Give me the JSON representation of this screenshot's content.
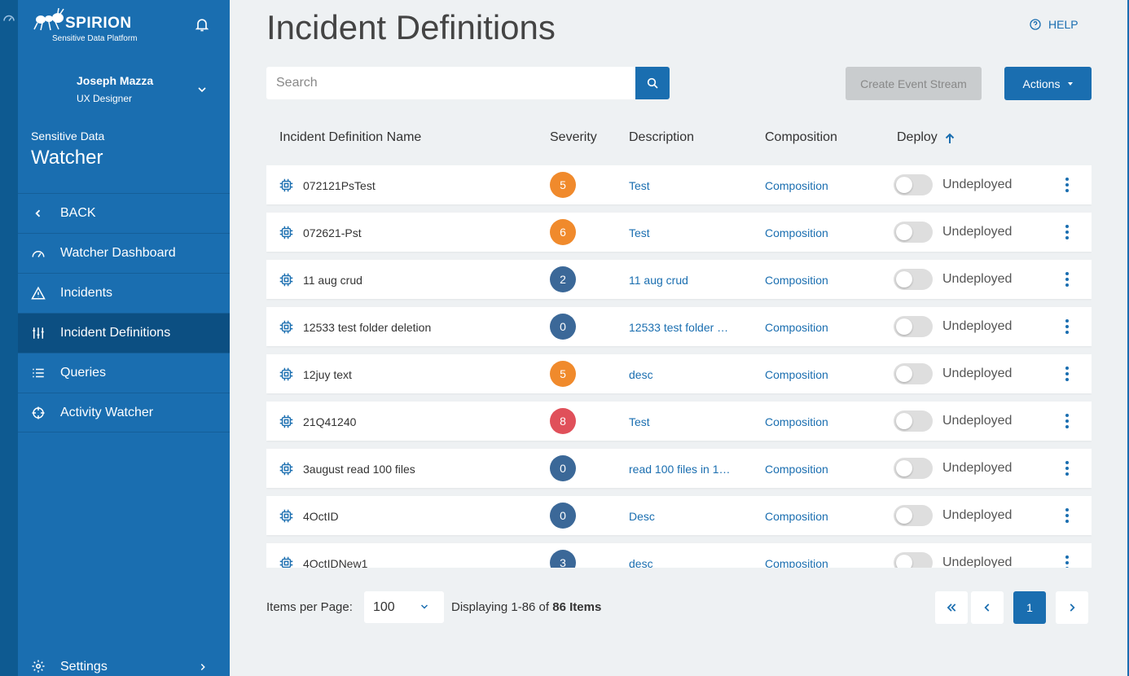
{
  "app": {
    "logo_text": "SPIRION",
    "logo_sub": "Sensitive Data Platform"
  },
  "user": {
    "name": "Joseph Mazza",
    "role": "UX Designer"
  },
  "section": {
    "label": "Sensitive Data",
    "title": "Watcher"
  },
  "nav": {
    "items": [
      {
        "label": "BACK",
        "icon": "chevron-left-icon"
      },
      {
        "label": "Watcher Dashboard",
        "icon": "gauge-icon"
      },
      {
        "label": "Incidents",
        "icon": "warning-icon"
      },
      {
        "label": "Incident Definitions",
        "icon": "sliders-icon",
        "active": true
      },
      {
        "label": "Queries",
        "icon": "list-icon"
      },
      {
        "label": "Activity Watcher",
        "icon": "crosshair-icon"
      }
    ],
    "settings_label": "Settings"
  },
  "page": {
    "title": "Incident Definitions",
    "help_label": "HELP"
  },
  "toolbar": {
    "search_placeholder": "Search",
    "create_label": "Create Event Stream",
    "actions_label": "Actions"
  },
  "table": {
    "columns": [
      "Incident Definition Name",
      "Severity",
      "Description",
      "Composition",
      "Deploy"
    ],
    "sort_column": "Deploy",
    "sort_direction": "ascending",
    "rows": [
      {
        "name": "072121PsTest",
        "severity": "5",
        "severity_color": "#f08a2c",
        "description": "Test",
        "composition": "Composition",
        "status": "Undeployed"
      },
      {
        "name": "072621-Pst",
        "severity": "6",
        "severity_color": "#f08a2c",
        "description": "Test",
        "composition": "Composition",
        "status": "Undeployed"
      },
      {
        "name": "11 aug crud",
        "severity": "2",
        "severity_color": "#3b6898",
        "description": "11 aug crud",
        "composition": "Composition",
        "status": "Undeployed"
      },
      {
        "name": "12533 test folder deletion",
        "severity": "0",
        "severity_color": "#3b6898",
        "description": "12533 test folder …",
        "composition": "Composition",
        "status": "Undeployed"
      },
      {
        "name": "12juy text",
        "severity": "5",
        "severity_color": "#f08a2c",
        "description": "desc",
        "composition": "Composition",
        "status": "Undeployed"
      },
      {
        "name": "21Q41240",
        "severity": "8",
        "severity_color": "#e0505a",
        "description": "Test",
        "composition": "Composition",
        "status": "Undeployed"
      },
      {
        "name": "3august read 100 files",
        "severity": "0",
        "severity_color": "#3b6898",
        "description": "read 100 files in 1…",
        "composition": "Composition",
        "status": "Undeployed"
      },
      {
        "name": "4OctID",
        "severity": "0",
        "severity_color": "#3b6898",
        "description": "Desc",
        "composition": "Composition",
        "status": "Undeployed"
      },
      {
        "name": "4OctIDNew1",
        "severity": "3",
        "severity_color": "#3b6898",
        "description": "desc",
        "composition": "Composition",
        "status": "Undeployed"
      }
    ]
  },
  "pagination": {
    "items_per_page_label": "Items per Page:",
    "items_per_page_value": "100",
    "display_prefix": "Displaying 1-86 of",
    "display_total": "86 Items",
    "current_page": "1"
  },
  "colors": {
    "primary": "#1a6eb0",
    "sidebar_active": "#0c4f82"
  }
}
